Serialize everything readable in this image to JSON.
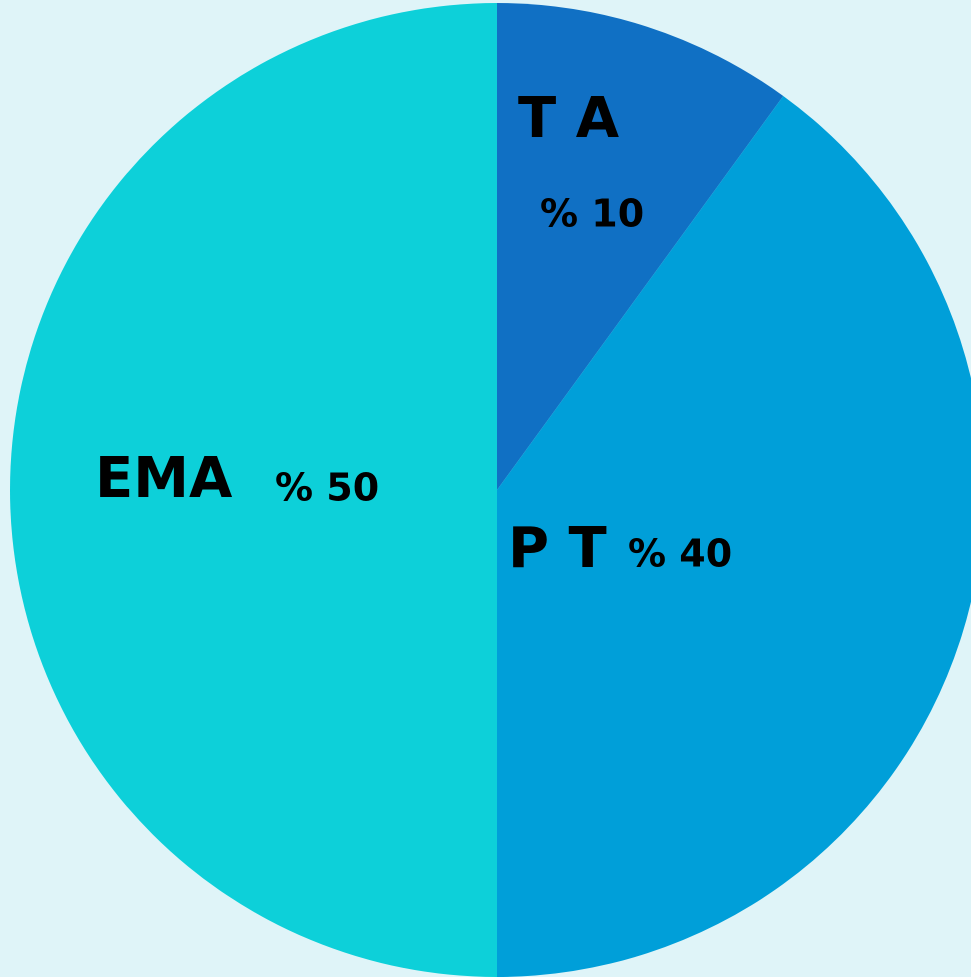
{
  "chart_data": {
    "type": "pie",
    "categories": [
      "T A",
      "P T",
      "EMA"
    ],
    "values": [
      10,
      40,
      50
    ],
    "value_labels": [
      "% 10",
      "% 40",
      "% 50"
    ],
    "colors": [
      "#1070c4",
      "#009fd9",
      "#0dd0d9"
    ]
  }
}
